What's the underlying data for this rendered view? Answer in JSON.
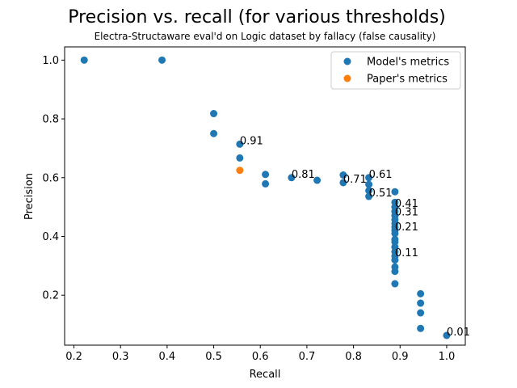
{
  "chart_data": {
    "type": "scatter",
    "title": "Precision vs. recall (for various thresholds)",
    "subtitle": "Electra-Structaware eval'd on Logic dataset by fallacy (false causality)",
    "xlabel": "Recall",
    "ylabel": "Precision",
    "xlim": [
      0.18,
      1.04
    ],
    "ylim": [
      0.03,
      1.045
    ],
    "xticks": [
      0.2,
      0.3,
      0.4,
      0.5,
      0.6,
      0.7,
      0.8,
      0.9,
      1.0
    ],
    "xtick_labels": [
      "0.2",
      "0.3",
      "0.4",
      "0.5",
      "0.6",
      "0.7",
      "0.8",
      "0.9",
      "1.0"
    ],
    "yticks": [
      0.2,
      0.4,
      0.6,
      0.8,
      1.0
    ],
    "ytick_labels": [
      "0.2",
      "0.4",
      "0.6",
      "0.8",
      "1.0"
    ],
    "grid": false,
    "legend_position": "top-right",
    "series": [
      {
        "name": "Model's metrics",
        "color": "#1f77b4",
        "points": [
          [
            0.222,
            1.0
          ],
          [
            0.389,
            1.0
          ],
          [
            0.5,
            0.818
          ],
          [
            0.5,
            0.75
          ],
          [
            0.556,
            0.714
          ],
          [
            0.556,
            0.667
          ],
          [
            0.611,
            0.611
          ],
          [
            0.611,
            0.579
          ],
          [
            0.667,
            0.6
          ],
          [
            0.722,
            0.591
          ],
          [
            0.778,
            0.609
          ],
          [
            0.778,
            0.583
          ],
          [
            0.833,
            0.6
          ],
          [
            0.833,
            0.577
          ],
          [
            0.833,
            0.556
          ],
          [
            0.833,
            0.536
          ],
          [
            0.889,
            0.552
          ],
          [
            0.889,
            0.516
          ],
          [
            0.889,
            0.5
          ],
          [
            0.889,
            0.485
          ],
          [
            0.889,
            0.471
          ],
          [
            0.889,
            0.457
          ],
          [
            0.889,
            0.444
          ],
          [
            0.889,
            0.432
          ],
          [
            0.889,
            0.421
          ],
          [
            0.889,
            0.41
          ],
          [
            0.889,
            0.39
          ],
          [
            0.889,
            0.381
          ],
          [
            0.889,
            0.364
          ],
          [
            0.889,
            0.348
          ],
          [
            0.889,
            0.333
          ],
          [
            0.889,
            0.32
          ],
          [
            0.889,
            0.296
          ],
          [
            0.889,
            0.281
          ],
          [
            0.889,
            0.239
          ],
          [
            0.944,
            0.205
          ],
          [
            0.944,
            0.173
          ],
          [
            0.944,
            0.14
          ],
          [
            0.944,
            0.087
          ],
          [
            1.0,
            0.063
          ]
        ]
      },
      {
        "name": "Paper's metrics",
        "color": "#ff7f0e",
        "points": [
          [
            0.556,
            0.625
          ]
        ]
      }
    ],
    "annotations": [
      {
        "text": "0.91",
        "x": 0.556,
        "y": 0.714
      },
      {
        "text": "0.81",
        "x": 0.667,
        "y": 0.6
      },
      {
        "text": "0.71",
        "x": 0.778,
        "y": 0.583
      },
      {
        "text": "0.61",
        "x": 0.833,
        "y": 0.6
      },
      {
        "text": "0.51",
        "x": 0.833,
        "y": 0.536
      },
      {
        "text": "0.41",
        "x": 0.889,
        "y": 0.5
      },
      {
        "text": "0.31",
        "x": 0.889,
        "y": 0.471
      },
      {
        "text": "0.21",
        "x": 0.889,
        "y": 0.421
      },
      {
        "text": "0.11",
        "x": 0.889,
        "y": 0.333
      },
      {
        "text": "0.01",
        "x": 1.0,
        "y": 0.063
      }
    ]
  }
}
